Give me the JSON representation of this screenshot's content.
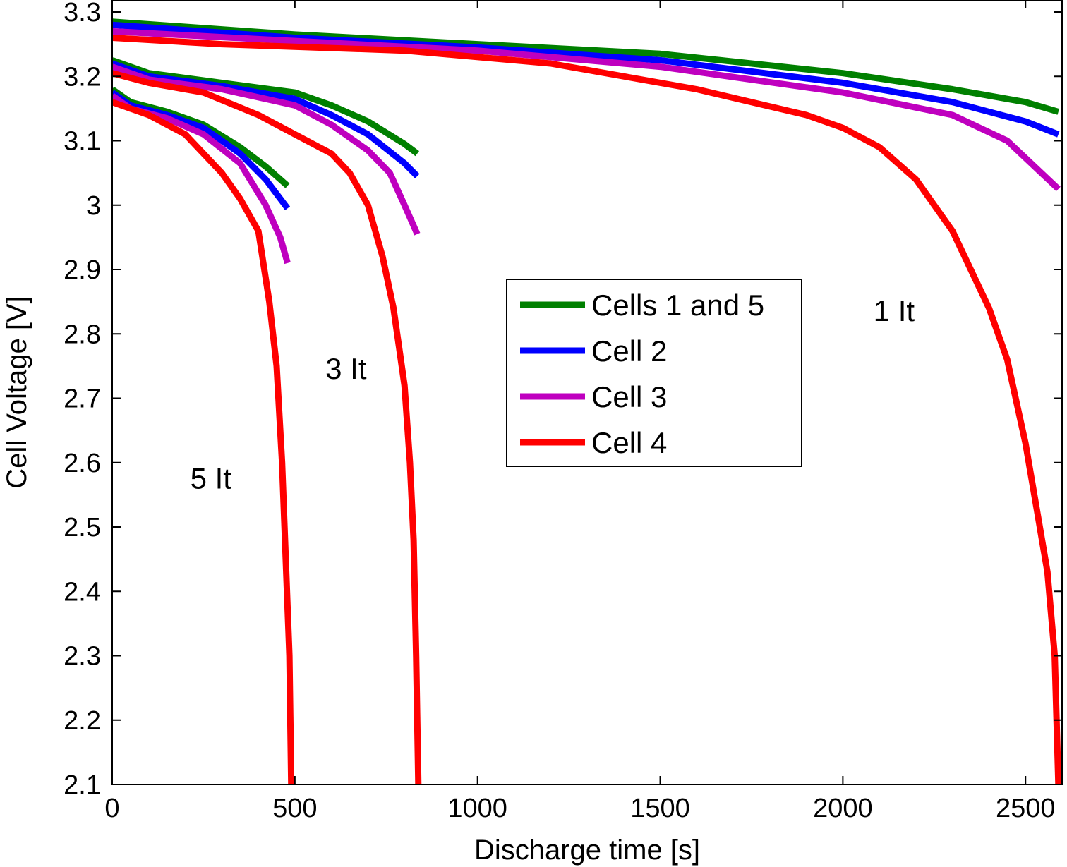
{
  "chart_data": {
    "type": "line",
    "title": "",
    "xlabel": "Discharge time [s]",
    "ylabel": "Cell Voltage [V]",
    "xlim": [
      0,
      2600
    ],
    "ylim": [
      2.1,
      3.32
    ],
    "x_ticks": [
      0,
      500,
      1000,
      1500,
      2000,
      2500
    ],
    "x_tick_labels": [
      "0",
      "500",
      "1000",
      "1500",
      "2000",
      "2500"
    ],
    "y_ticks": [
      2.1,
      2.2,
      2.3,
      2.4,
      2.5,
      2.6,
      2.7,
      2.8,
      2.9,
      3.0,
      3.1,
      3.2,
      3.3
    ],
    "y_tick_labels": [
      "2.1",
      "2.2",
      "2.3",
      "2.4",
      "2.5",
      "2.6",
      "2.7",
      "2.8",
      "2.9",
      "3",
      "3.1",
      "3.2",
      "3.3"
    ],
    "grid": false,
    "legend_position": "center",
    "colors": {
      "Cells 1 and 5": "#008000",
      "Cell 2": "#0000ff",
      "Cell 3": "#bf00bf",
      "Cell 4": "#ff0000"
    },
    "legend": [
      "Cells 1 and 5",
      "Cell 2",
      "Cell 3",
      "Cell 4"
    ],
    "annotations": [
      {
        "text": "1 It",
        "x": 2140,
        "y": 2.82
      },
      {
        "text": "3 It",
        "x": 640,
        "y": 2.73
      },
      {
        "text": "5 It",
        "x": 270,
        "y": 2.56
      }
    ],
    "series": [
      {
        "name": "Cells 1 and 5",
        "rate": "1 It",
        "x": [
          0,
          500,
          1000,
          1500,
          2000,
          2300,
          2500,
          2590
        ],
        "y": [
          3.285,
          3.265,
          3.25,
          3.235,
          3.205,
          3.18,
          3.16,
          3.145
        ]
      },
      {
        "name": "Cell 2",
        "rate": "1 It",
        "x": [
          0,
          500,
          1000,
          1500,
          2000,
          2300,
          2500,
          2590
        ],
        "y": [
          3.28,
          3.26,
          3.245,
          3.225,
          3.19,
          3.16,
          3.13,
          3.11
        ]
      },
      {
        "name": "Cell 3",
        "rate": "1 It",
        "x": [
          0,
          500,
          1000,
          1500,
          2000,
          2300,
          2450,
          2590
        ],
        "y": [
          3.27,
          3.255,
          3.24,
          3.215,
          3.175,
          3.14,
          3.1,
          3.025
        ]
      },
      {
        "name": "Cell 4",
        "rate": "1 It",
        "x": [
          0,
          300,
          800,
          1200,
          1600,
          1900,
          2000,
          2100,
          2200,
          2300,
          2400,
          2450,
          2500,
          2530,
          2560,
          2580,
          2590
        ],
        "y": [
          3.26,
          3.25,
          3.24,
          3.22,
          3.18,
          3.14,
          3.12,
          3.09,
          3.04,
          2.96,
          2.84,
          2.76,
          2.63,
          2.53,
          2.43,
          2.3,
          2.1
        ]
      },
      {
        "name": "Cells 1 and 5",
        "rate": "3 It",
        "x": [
          0,
          100,
          300,
          500,
          600,
          700,
          800,
          835
        ],
        "y": [
          3.225,
          3.205,
          3.19,
          3.175,
          3.155,
          3.13,
          3.095,
          3.08
        ]
      },
      {
        "name": "Cell 2",
        "rate": "3 It",
        "x": [
          0,
          100,
          300,
          500,
          600,
          700,
          800,
          835
        ],
        "y": [
          3.22,
          3.2,
          3.185,
          3.165,
          3.14,
          3.11,
          3.065,
          3.045
        ]
      },
      {
        "name": "Cell 3",
        "rate": "3 It",
        "x": [
          0,
          100,
          300,
          500,
          600,
          700,
          760,
          800,
          835
        ],
        "y": [
          3.215,
          3.195,
          3.18,
          3.155,
          3.125,
          3.085,
          3.05,
          3.0,
          2.955
        ]
      },
      {
        "name": "Cell 4",
        "rate": "3 It",
        "x": [
          0,
          100,
          250,
          400,
          500,
          600,
          650,
          700,
          740,
          770,
          800,
          815,
          825,
          832,
          838
        ],
        "y": [
          3.205,
          3.19,
          3.175,
          3.14,
          3.11,
          3.08,
          3.05,
          3.0,
          2.92,
          2.84,
          2.72,
          2.6,
          2.48,
          2.3,
          2.1
        ]
      },
      {
        "name": "Cells 1 and 5",
        "rate": "5 It",
        "x": [
          0,
          50,
          150,
          250,
          350,
          420,
          480
        ],
        "y": [
          3.18,
          3.16,
          3.145,
          3.125,
          3.09,
          3.06,
          3.03
        ]
      },
      {
        "name": "Cell 2",
        "rate": "5 It",
        "x": [
          0,
          50,
          150,
          250,
          350,
          420,
          480
        ],
        "y": [
          3.175,
          3.155,
          3.14,
          3.12,
          3.08,
          3.04,
          2.995
        ]
      },
      {
        "name": "Cell 3",
        "rate": "5 It",
        "x": [
          0,
          50,
          150,
          250,
          350,
          420,
          460,
          480
        ],
        "y": [
          3.17,
          3.15,
          3.135,
          3.11,
          3.065,
          3.0,
          2.95,
          2.91
        ]
      },
      {
        "name": "Cell 4",
        "rate": "5 It",
        "x": [
          0,
          100,
          200,
          300,
          350,
          400,
          430,
          450,
          465,
          475,
          485,
          490
        ],
        "y": [
          3.16,
          3.14,
          3.11,
          3.05,
          3.01,
          2.96,
          2.85,
          2.75,
          2.6,
          2.45,
          2.3,
          2.1
        ]
      }
    ]
  }
}
